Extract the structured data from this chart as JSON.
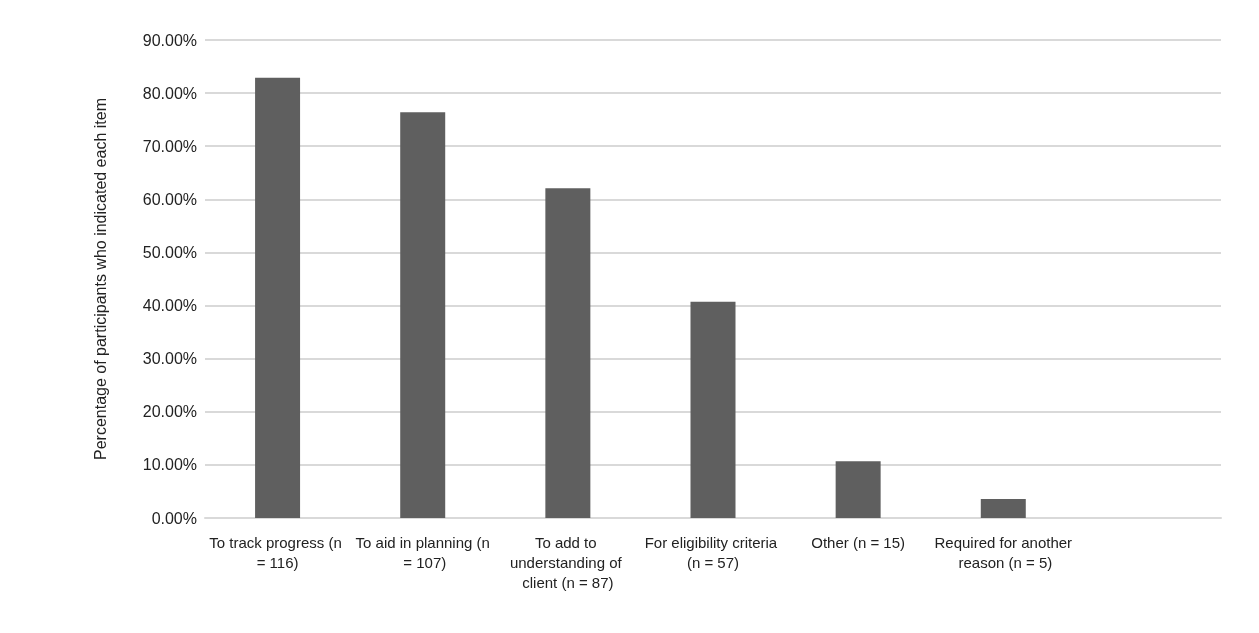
{
  "chart_data": {
    "type": "bar",
    "ylabel": "Percentage of participants who indicated each item",
    "categories": [
      "To track progress (n = 116)",
      "To aid in planning (n = 107)",
      "To add to understanding of client (n = 87)",
      "For eligibility criteria (n = 57)",
      "Other (n = 15)",
      "Required for another reason (n = 5)",
      null
    ],
    "values": [
      82.9,
      76.4,
      62.1,
      40.7,
      10.7,
      3.6,
      null
    ],
    "color": "#5f5f5f",
    "ylim": [
      0,
      90
    ],
    "yticks": [
      {
        "value": 0,
        "label": "0.00%"
      },
      {
        "value": 10,
        "label": "10.00%"
      },
      {
        "value": 20,
        "label": "20.00%"
      },
      {
        "value": 30,
        "label": "30.00%"
      },
      {
        "value": 40,
        "label": "40.00%"
      },
      {
        "value": 50,
        "label": "50.00%"
      },
      {
        "value": 60,
        "label": "60.00%"
      },
      {
        "value": 70,
        "label": "70.00%"
      },
      {
        "value": 80,
        "label": "80.00%"
      },
      {
        "value": 90,
        "label": "90.00%"
      }
    ],
    "grid": "y"
  }
}
